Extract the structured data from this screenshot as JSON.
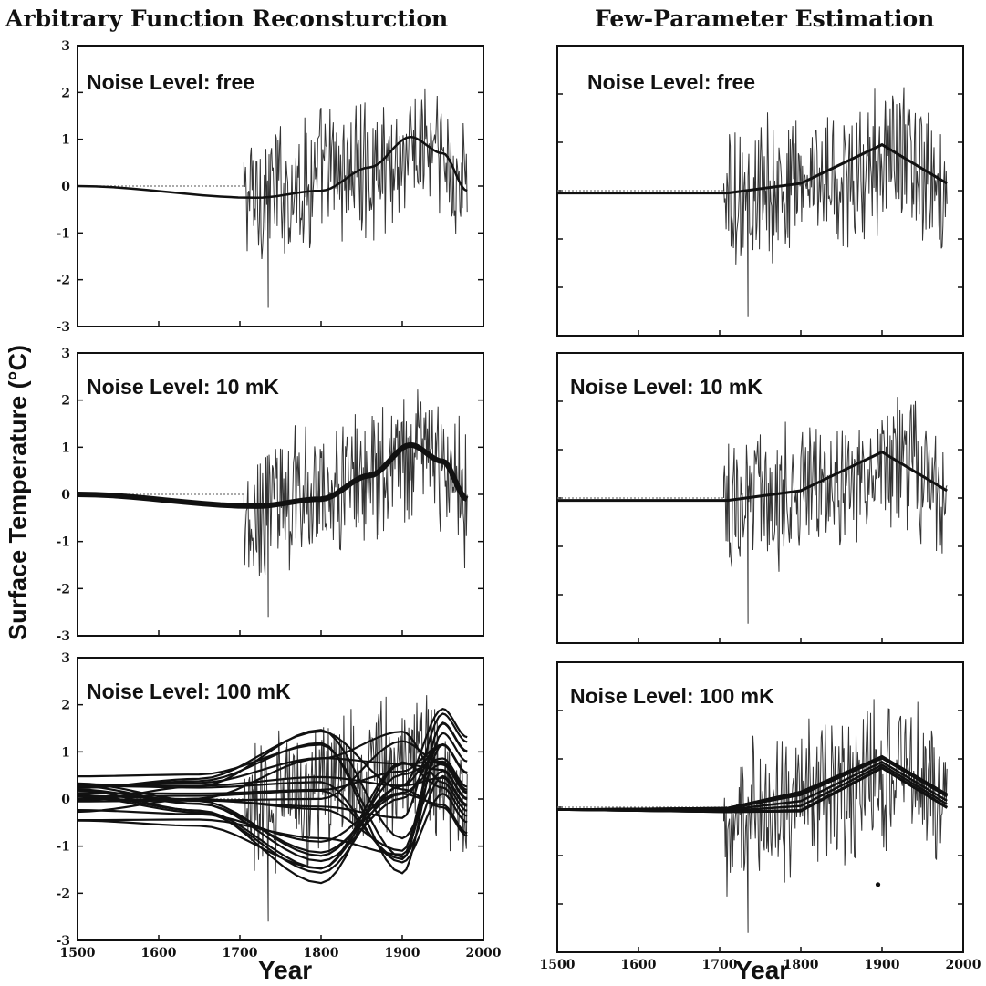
{
  "figure": {
    "left_title": "Arbitrary Function Reconsturction",
    "right_title": "Few-Parameter Estimation",
    "ylabel": "Surface Temperature (°C)",
    "xlabel": "Year"
  },
  "chart_data": [
    {
      "type": "line",
      "panel": "left-top",
      "annotation": "Noise Level: free",
      "xlim": [
        1500,
        2000
      ],
      "ylim": [
        -3,
        3
      ],
      "ytick_labels": [
        "3",
        "2",
        "1",
        "0",
        "-1",
        "-2",
        "-3"
      ]
    },
    {
      "type": "line",
      "panel": "right-top",
      "annotation": "Noise Level: free",
      "xlim": [
        1500,
        2000
      ],
      "ylim": [
        -3,
        3
      ],
      "ytick_labels": []
    },
    {
      "type": "line",
      "panel": "left-middle",
      "annotation": "Noise Level: 10 mK",
      "xlim": [
        1500,
        2000
      ],
      "ylim": [
        -3,
        3
      ],
      "ytick_labels": [
        "3",
        "2",
        "1",
        "0",
        "-1",
        "-2",
        "-3"
      ]
    },
    {
      "type": "line",
      "panel": "right-middle",
      "annotation": "Noise Level: 10 mK",
      "xlim": [
        1500,
        2000
      ],
      "ylim": [
        -3,
        3
      ],
      "ytick_labels": []
    },
    {
      "type": "line",
      "panel": "left-bottom",
      "annotation": "Noise Level: 100 mK",
      "xlim": [
        1500,
        2000
      ],
      "ylim": [
        -3,
        3
      ],
      "ytick_labels": [
        "3",
        "2",
        "1",
        "0",
        "-1",
        "-2",
        "-3"
      ],
      "xtick_labels": [
        "1500",
        "1600",
        "1700",
        "1800",
        "1900",
        "2000"
      ]
    },
    {
      "type": "line",
      "panel": "right-bottom",
      "annotation": "Noise Level: 100 mK",
      "xlim": [
        1500,
        2000
      ],
      "ylim": [
        -3,
        3
      ],
      "ytick_labels": [],
      "xtick_labels": [
        "1500",
        "1600",
        "1700",
        "1800",
        "1900",
        "2000"
      ]
    }
  ]
}
